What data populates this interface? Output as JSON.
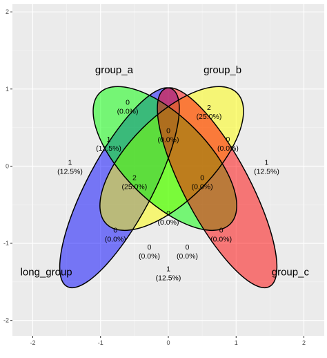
{
  "chart_data": {
    "type": "venn",
    "xlim": [
      -2.3,
      2.3
    ],
    "ylim": [
      -2.2,
      2.1
    ],
    "x_ticks": [
      "-2",
      "-1",
      "0",
      "1",
      "2"
    ],
    "x_tick_values": [
      -2,
      -1,
      0,
      1,
      2
    ],
    "y_ticks": [
      "2",
      "1",
      "0",
      "-1",
      "-2"
    ],
    "y_tick_values": [
      2,
      1,
      0,
      -1,
      -2
    ],
    "grid": true,
    "sets": [
      {
        "name": "long_group",
        "color": "#0000ff",
        "ellipse": {
          "cx": -0.72,
          "cy": -0.28,
          "rx": 0.48,
          "ry": 1.45,
          "angle": 28
        },
        "label_pos": [
          -1.8,
          -1.37
        ]
      },
      {
        "name": "group_a",
        "color": "#ffff00",
        "ellipse": {
          "cx": 0.05,
          "cy": 0.1,
          "rx": 0.62,
          "ry": 1.2,
          "angle": 45
        },
        "label_pos": [
          -0.8,
          1.25
        ]
      },
      {
        "name": "group_b",
        "color": "#00ff00",
        "ellipse": {
          "cx": -0.05,
          "cy": 0.1,
          "rx": 0.62,
          "ry": 1.2,
          "angle": -45
        },
        "label_pos": [
          0.8,
          1.25
        ]
      },
      {
        "name": "group_c",
        "color": "#ff0000",
        "ellipse": {
          "cx": 0.72,
          "cy": -0.28,
          "rx": 0.48,
          "ry": 1.45,
          "angle": -28
        },
        "label_pos": [
          1.8,
          -1.37
        ]
      }
    ],
    "regions": [
      {
        "count": "1",
        "percent": "(12.5%)",
        "pos": [
          -1.45,
          0.0
        ]
      },
      {
        "count": "0",
        "percent": "(0.0%)",
        "pos": [
          -0.6,
          0.78
        ]
      },
      {
        "count": "2",
        "percent": "(25.0%)",
        "pos": [
          0.6,
          0.71
        ]
      },
      {
        "count": "1",
        "percent": "(12.5%)",
        "pos": [
          1.45,
          0.0
        ]
      },
      {
        "count": "1",
        "percent": "(12.5%)",
        "pos": [
          -0.88,
          0.3
        ]
      },
      {
        "count": "0",
        "percent": "(0.0%)",
        "pos": [
          0.0,
          0.41
        ]
      },
      {
        "count": "0",
        "percent": "(0.0%)",
        "pos": [
          0.88,
          0.3
        ]
      },
      {
        "count": "2",
        "percent": "(25.0%)",
        "pos": [
          -0.5,
          -0.2
        ]
      },
      {
        "count": "0",
        "percent": "(0.0%)",
        "pos": [
          0.5,
          -0.2
        ]
      },
      {
        "count": "0",
        "percent": "(0.0%)",
        "pos": [
          -0.78,
          -0.88
        ]
      },
      {
        "count": "0",
        "percent": "(0.0%)",
        "pos": [
          0.0,
          -0.66
        ]
      },
      {
        "count": "0",
        "percent": "(0.0%)",
        "pos": [
          0.78,
          -0.88
        ]
      },
      {
        "count": "0",
        "percent": "(0.0%)",
        "pos": [
          -0.28,
          -1.1
        ]
      },
      {
        "count": "0",
        "percent": "(0.0%)",
        "pos": [
          0.28,
          -1.1
        ]
      },
      {
        "count": "1",
        "percent": "(12.5%)",
        "pos": [
          0.0,
          -1.38
        ]
      }
    ]
  }
}
